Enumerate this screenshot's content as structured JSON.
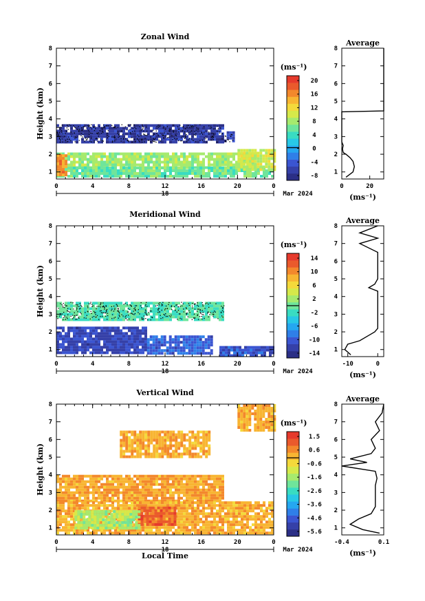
{
  "x_axis_label": "Local Time",
  "y_axis_label": "Height (km)",
  "date_label": "Mar 2024",
  "day_label": "18",
  "unit_label": "(ms⁻¹)",
  "profile_title": "Average",
  "x_ticks": [
    "0",
    "4",
    "8",
    "12",
    "16",
    "20",
    "0"
  ],
  "y_ticks": [
    "1",
    "2",
    "3",
    "4",
    "5",
    "6",
    "7",
    "8"
  ],
  "chart_data": [
    {
      "type": "heatmap",
      "title": "Zonal Wind",
      "xlim": [
        0,
        24
      ],
      "ylim": [
        0.6,
        8
      ],
      "colorbar_ticks": [
        "20",
        "16",
        "12",
        "8",
        "4",
        "0",
        "-4",
        "-8"
      ],
      "colorbar_range": [
        -10,
        22
      ],
      "regions": [
        {
          "x": [
            0,
            18.5
          ],
          "y": [
            2.7,
            3.7
          ],
          "value": -7,
          "stipple": true
        },
        {
          "x": [
            18.5,
            19.5
          ],
          "y": [
            2.7,
            3.3
          ],
          "value": -7,
          "stipple": true
        },
        {
          "x": [
            0,
            22
          ],
          "y": [
            1.3,
            2.1
          ],
          "value": 8
        },
        {
          "x": [
            0,
            24
          ],
          "y": [
            0.7,
            1.3
          ],
          "value": 6
        },
        {
          "x": [
            20,
            24
          ],
          "y": [
            1.2,
            2.3
          ],
          "value": 10
        },
        {
          "x": [
            0,
            1
          ],
          "y": [
            0.8,
            2.0
          ],
          "value": 16
        }
      ],
      "profile": {
        "xlim": [
          0,
          30
        ],
        "xticks": [
          "0",
          "20"
        ],
        "heights": [
          0.7,
          1.0,
          1.3,
          1.6,
          1.8,
          2.0,
          2.1,
          2.3,
          2.5,
          2.7,
          3.0,
          3.5,
          4.0,
          4.4,
          4.45,
          4.6,
          5,
          6,
          7,
          8
        ],
        "values": [
          3,
          8,
          9,
          8,
          6,
          3,
          1,
          0.5,
          1,
          0,
          0,
          0,
          0,
          0,
          30,
          30,
          30,
          30,
          30,
          30
        ]
      }
    },
    {
      "type": "heatmap",
      "title": "Meridional Wind",
      "xlim": [
        0,
        24
      ],
      "ylim": [
        0.6,
        8
      ],
      "colorbar_ticks": [
        "14",
        "10",
        "6",
        "2",
        "-2",
        "-6",
        "-10",
        "-14"
      ],
      "colorbar_range": [
        -16,
        16
      ],
      "regions": [
        {
          "x": [
            0,
            18.5
          ],
          "y": [
            2.7,
            3.7
          ],
          "value": -1,
          "stipple": true
        },
        {
          "x": [
            0,
            10
          ],
          "y": [
            0.8,
            2.3
          ],
          "value": -12
        },
        {
          "x": [
            10,
            17
          ],
          "y": [
            0.8,
            1.8
          ],
          "value": -10
        },
        {
          "x": [
            18,
            24
          ],
          "y": [
            0.7,
            1.2
          ],
          "value": -11
        }
      ],
      "profile": {
        "xlim": [
          -12,
          2
        ],
        "xticks": [
          "-10",
          "0"
        ],
        "heights": [
          0.7,
          1.0,
          1.3,
          1.5,
          1.8,
          2.0,
          2.2,
          2.5,
          3.0,
          3.5,
          4.0,
          4.3,
          4.5,
          4.7,
          5.0,
          5.5,
          6.0,
          6.5,
          7.0,
          7.3,
          7.6,
          8.0
        ],
        "values": [
          -9,
          -11,
          -10,
          -6,
          -3,
          -1,
          0,
          0,
          0,
          0,
          0,
          0,
          -3,
          -1,
          0,
          0,
          0,
          0,
          -6,
          0,
          -6,
          0
        ]
      }
    },
    {
      "type": "heatmap",
      "title": "Vertical Wind",
      "xlim": [
        0,
        24
      ],
      "ylim": [
        0.6,
        8
      ],
      "colorbar_ticks": [
        "1.5",
        "0.6",
        "-0.6",
        "-1.6",
        "-2.6",
        "-3.6",
        "-4.6",
        "-5.6"
      ],
      "colorbar_range": [
        -6,
        2
      ],
      "regions": [
        {
          "x": [
            0,
            18.5
          ],
          "y": [
            2.5,
            4.0
          ],
          "value": 0.3
        },
        {
          "x": [
            0,
            24
          ],
          "y": [
            0.7,
            2.5
          ],
          "value": 0.2
        },
        {
          "x": [
            7,
            17
          ],
          "y": [
            5.0,
            6.5
          ],
          "value": 0.2
        },
        {
          "x": [
            20,
            24
          ],
          "y": [
            6.5,
            8.0
          ],
          "value": 0.2
        },
        {
          "x": [
            9,
            13
          ],
          "y": [
            1.2,
            2.2
          ],
          "value": 1.2
        },
        {
          "x": [
            2,
            9
          ],
          "y": [
            1.0,
            2.0
          ],
          "value": -1.4
        }
      ],
      "profile": {
        "xlim": [
          -0.4,
          0.1
        ],
        "xticks": [
          "-0.4",
          "0.1"
        ],
        "heights": [
          0.7,
          0.9,
          1.2,
          1.5,
          1.8,
          2.2,
          2.8,
          3.4,
          3.8,
          4.2,
          4.5,
          4.7,
          4.9,
          5.2,
          5.5,
          6.0,
          6.5,
          7.0,
          7.5,
          8.0
        ],
        "values": [
          0.05,
          -0.15,
          -0.3,
          -0.2,
          -0.05,
          0.0,
          0.0,
          0.0,
          0.02,
          0.0,
          -0.4,
          -0.1,
          -0.3,
          -0.05,
          0.0,
          -0.05,
          0.05,
          0.0,
          0.08,
          0.1
        ]
      }
    }
  ]
}
